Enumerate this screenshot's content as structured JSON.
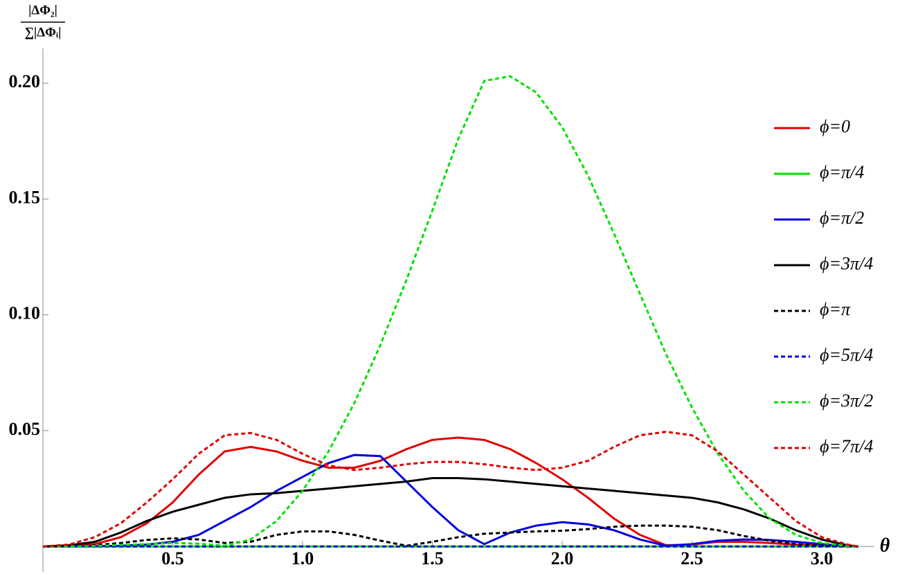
{
  "chart_data": {
    "type": "line",
    "y_label_numerator": "|ΔΦ₂|",
    "y_label_denominator": "∑|ΔΦᵢ|",
    "x_label": "θ",
    "x": [
      0,
      0.1,
      0.2,
      0.3,
      0.4,
      0.5,
      0.6,
      0.7,
      0.8,
      0.9,
      1.0,
      1.1,
      1.2,
      1.3,
      1.4,
      1.5,
      1.6,
      1.7,
      1.8,
      1.9,
      2.0,
      2.1,
      2.2,
      2.3,
      2.4,
      2.5,
      2.6,
      2.7,
      2.8,
      2.9,
      3.0,
      3.1,
      3.14
    ],
    "series": [
      {
        "name": "ϕ=0",
        "color": "#e00000",
        "dashed": false,
        "values": [
          0,
          0.0003,
          0.001,
          0.004,
          0.01,
          0.019,
          0.031,
          0.041,
          0.043,
          0.041,
          0.037,
          0.034,
          0.034,
          0.037,
          0.042,
          0.046,
          0.047,
          0.046,
          0.042,
          0.036,
          0.029,
          0.021,
          0.012,
          0.005,
          0.0005,
          0.0008,
          0.002,
          0.002,
          0.0015,
          0.0008,
          0.0003,
          0.0001,
          0
        ]
      },
      {
        "name": "ϕ=π/4",
        "color": "#00e000",
        "dashed": false,
        "values": [
          0,
          0,
          0,
          0,
          0,
          0,
          0,
          0,
          0,
          0,
          0,
          0,
          0,
          0,
          0,
          0,
          0,
          0,
          0,
          0,
          0,
          0,
          0,
          0,
          0,
          0,
          0,
          0,
          0,
          0,
          0,
          0,
          0
        ]
      },
      {
        "name": "ϕ=π/2",
        "color": "#0000e0",
        "dashed": false,
        "values": [
          0,
          0,
          0.0001,
          0.0003,
          0.0008,
          0.002,
          0.005,
          0.011,
          0.017,
          0.024,
          0.03,
          0.036,
          0.0395,
          0.039,
          0.028,
          0.017,
          0.007,
          0.001,
          0.006,
          0.009,
          0.0105,
          0.0095,
          0.007,
          0.003,
          0.0003,
          0.001,
          0.0025,
          0.003,
          0.0028,
          0.002,
          0.001,
          0.0002,
          0
        ]
      },
      {
        "name": "ϕ=3π/4",
        "color": "#000000",
        "dashed": false,
        "values": [
          0,
          0.0005,
          0.002,
          0.006,
          0.011,
          0.015,
          0.018,
          0.021,
          0.0225,
          0.023,
          0.024,
          0.025,
          0.026,
          0.027,
          0.028,
          0.0295,
          0.0295,
          0.029,
          0.028,
          0.027,
          0.026,
          0.025,
          0.024,
          0.023,
          0.022,
          0.021,
          0.019,
          0.016,
          0.012,
          0.007,
          0.003,
          0.0005,
          0
        ]
      },
      {
        "name": "ϕ=π",
        "color": "#000000",
        "dashed": true,
        "values": [
          0,
          0.0001,
          0.0005,
          0.0015,
          0.0028,
          0.0035,
          0.003,
          0.0015,
          0.002,
          0.005,
          0.0065,
          0.0065,
          0.005,
          0.0025,
          0.0003,
          0.002,
          0.004,
          0.0055,
          0.006,
          0.0065,
          0.0068,
          0.0075,
          0.0085,
          0.009,
          0.009,
          0.0085,
          0.007,
          0.0045,
          0.0025,
          0.001,
          0.0003,
          0.0001,
          0
        ]
      },
      {
        "name": "ϕ=5π/4",
        "color": "#0000e0",
        "dashed": true,
        "values": [
          0,
          0,
          0,
          0,
          0,
          0,
          0,
          0,
          0,
          0,
          0,
          0,
          0,
          0,
          0,
          0,
          0,
          0,
          0,
          0,
          0,
          0,
          0,
          0,
          0,
          0,
          0,
          0,
          0,
          0,
          0,
          0,
          0
        ]
      },
      {
        "name": "ϕ=3π/2",
        "color": "#00e000",
        "dashed": true,
        "values": [
          0,
          0,
          0.0002,
          0.0006,
          0.001,
          0.0015,
          0.0012,
          0.0003,
          0.003,
          0.011,
          0.024,
          0.041,
          0.062,
          0.087,
          0.115,
          0.145,
          0.176,
          0.201,
          0.203,
          0.196,
          0.181,
          0.16,
          0.135,
          0.109,
          0.083,
          0.06,
          0.04,
          0.024,
          0.012,
          0.005,
          0.0015,
          0.0002,
          0
        ]
      },
      {
        "name": "ϕ=7π/4",
        "color": "#e00000",
        "dashed": true,
        "values": [
          0,
          0.0008,
          0.004,
          0.01,
          0.019,
          0.029,
          0.04,
          0.048,
          0.049,
          0.046,
          0.04,
          0.035,
          0.033,
          0.034,
          0.0355,
          0.0365,
          0.0365,
          0.0355,
          0.034,
          0.033,
          0.034,
          0.037,
          0.043,
          0.048,
          0.0495,
          0.048,
          0.041,
          0.031,
          0.021,
          0.011,
          0.004,
          0.0008,
          0
        ]
      }
    ],
    "xlim": [
      0,
      3.2
    ],
    "ylim": [
      -0.011,
      0.215
    ],
    "xticks": [
      0.5,
      {
        "value": 1,
        "label": "1.0"
      },
      1.5,
      {
        "value": 2,
        "label": "2.0"
      },
      2.5,
      {
        "value": 3,
        "label": "3.0"
      }
    ],
    "yticks": [
      0.05,
      {
        "value": 0.1,
        "label": "0.10"
      },
      0.15,
      {
        "value": 0.2,
        "label": "0.20"
      }
    ],
    "grid": false,
    "legend": "right"
  }
}
